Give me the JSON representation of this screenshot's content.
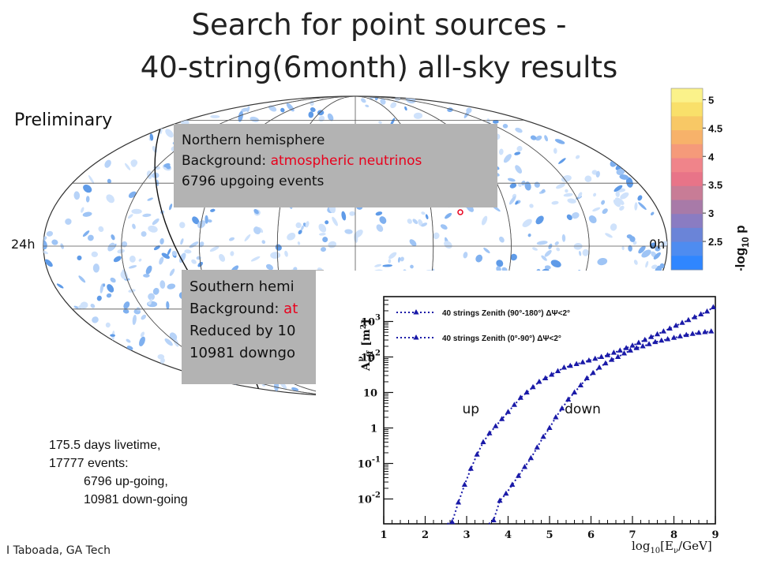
{
  "title_line1": "Search for point sources -",
  "title_line2": "40-string(6month) all-sky results",
  "preliminary": "Preliminary",
  "sky": {
    "left_ra": "24h",
    "right_ra": "0h"
  },
  "north_box": {
    "line1": "Northern hemisphere",
    "bg_prefix": "Background: ",
    "bg_value": "atmospheric neutrinos",
    "line3": "6796 upgoing events"
  },
  "south_box": {
    "line1": "Southern hemi",
    "bg_prefix": "Background: ",
    "bg_value": "at",
    "line3": "Reduced by 10",
    "line4": "10981 downgo"
  },
  "livetime": {
    "line1": "175.5 days livetime,",
    "line2": "17777 events:",
    "line3": "6796 up-going,",
    "line4": "10981 down-going"
  },
  "credit": "I Taboada, GA Tech",
  "colors": {
    "red": "#e8001c",
    "marker": "#1a1aa8",
    "box_grey": "#b3b3b3"
  },
  "chart_data": [
    {
      "type": "heatmap",
      "colorbar_label": "-log10 p",
      "colorbar_ticks": [
        "2.5",
        "3",
        "3.5",
        "4",
        "4.5",
        "5"
      ],
      "colorbar_range": [
        2.0,
        5.2
      ],
      "colorbar_colors": [
        "#2f86ff",
        "#4e8cf0",
        "#6a84d8",
        "#8a7cc2",
        "#a87aa8",
        "#c87c96",
        "#e87488",
        "#f0848a",
        "#f59a7a",
        "#f7b26a",
        "#f8c865",
        "#f9e06a",
        "#fbf28a"
      ]
    },
    {
      "type": "line",
      "ylabel": "A_eff^ν [m²]",
      "xlabel": "log10[Eν/GeV]",
      "x_ticks": [
        "1",
        "2",
        "3",
        "4",
        "5",
        "6",
        "7",
        "8",
        "9"
      ],
      "y_ticks": [
        "10^-2",
        "10^-1",
        "1",
        "10",
        "10^2",
        "10^3"
      ],
      "xlim": [
        1,
        9
      ],
      "ylog_lim": [
        -2.7,
        3.7
      ],
      "annotations": [
        {
          "text": "up",
          "x": 3.1,
          "ylog": 0.5
        },
        {
          "text": "down",
          "x": 5.8,
          "ylog": 0.5
        }
      ],
      "series": [
        {
          "name": "40 strings Zenith (90°-180°) ΔΨ<2°",
          "x": [
            2.65,
            2.8,
            2.95,
            3.1,
            3.25,
            3.4,
            3.55,
            3.7,
            3.85,
            4.0,
            4.15,
            4.3,
            4.45,
            4.6,
            4.75,
            4.9,
            5.05,
            5.2,
            5.35,
            5.5,
            5.65,
            5.8,
            5.95,
            6.1,
            6.25,
            6.4,
            6.55,
            6.7,
            6.85,
            7.0,
            7.15,
            7.3,
            7.45,
            7.6,
            7.75,
            7.9,
            8.05,
            8.2,
            8.35,
            8.5,
            8.65,
            8.8,
            8.95
          ],
          "ylog": [
            -2.65,
            -2.1,
            -1.6,
            -1.15,
            -0.75,
            -0.4,
            -0.15,
            0.05,
            0.25,
            0.45,
            0.65,
            0.85,
            1.0,
            1.15,
            1.3,
            1.4,
            1.5,
            1.6,
            1.7,
            1.75,
            1.8,
            1.85,
            1.9,
            1.95,
            2.0,
            2.05,
            2.12,
            2.18,
            2.25,
            2.32,
            2.4,
            2.48,
            2.56,
            2.64,
            2.72,
            2.8,
            2.88,
            2.96,
            3.04,
            3.12,
            3.2,
            3.28,
            3.4
          ]
        },
        {
          "name": "40 strings Zenith (0°-90°) ΔΨ<2°",
          "x": [
            3.65,
            3.8,
            3.95,
            4.1,
            4.25,
            4.4,
            4.55,
            4.7,
            4.85,
            5.0,
            5.15,
            5.3,
            5.45,
            5.6,
            5.75,
            5.9,
            6.05,
            6.2,
            6.35,
            6.5,
            6.65,
            6.8,
            6.95,
            7.1,
            7.25,
            7.4,
            7.55,
            7.7,
            7.85,
            8.0,
            8.15,
            8.3,
            8.45,
            8.6,
            8.75,
            8.9
          ],
          "ylog": [
            -2.6,
            -2.05,
            -1.85,
            -1.6,
            -1.35,
            -1.1,
            -0.85,
            -0.55,
            -0.25,
            0.0,
            0.3,
            0.55,
            0.8,
            1.0,
            1.2,
            1.4,
            1.55,
            1.7,
            1.82,
            1.92,
            2.0,
            2.1,
            2.18,
            2.25,
            2.3,
            2.36,
            2.42,
            2.46,
            2.5,
            2.54,
            2.58,
            2.62,
            2.65,
            2.68,
            2.7,
            2.72
          ]
        }
      ]
    }
  ]
}
